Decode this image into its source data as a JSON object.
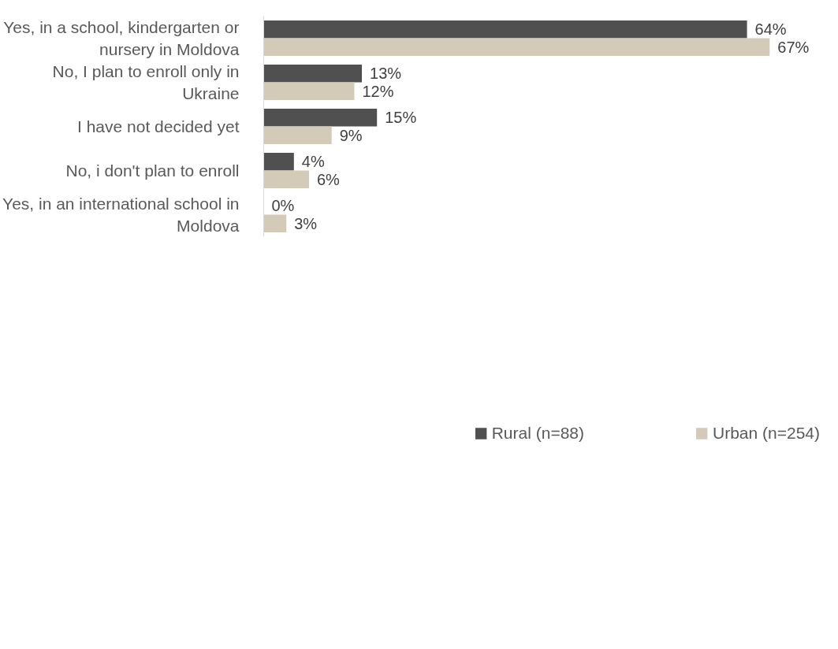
{
  "chart_data": {
    "type": "bar",
    "orientation": "horizontal",
    "categories": [
      "Yes, in a school, kindergarten or nursery in Moldova",
      "No, I plan to enroll only in Ukraine",
      "I have not decided yet",
      "No, i don't plan to enroll",
      "Yes, in an international school in Moldova"
    ],
    "series": [
      {
        "name": "Rural (n=88)",
        "color": "#505050",
        "values": [
          64,
          13,
          15,
          4,
          0
        ],
        "value_labels": [
          "64%",
          "13%",
          "15%",
          "4%",
          "0%"
        ]
      },
      {
        "name": "Urban (n=254)",
        "color": "#d3cbb8",
        "values": [
          67,
          12,
          9,
          6,
          3
        ],
        "value_labels": [
          "67%",
          "12%",
          "9%",
          "6%",
          "3%"
        ]
      }
    ],
    "legend": "bottom",
    "grid": false
  }
}
